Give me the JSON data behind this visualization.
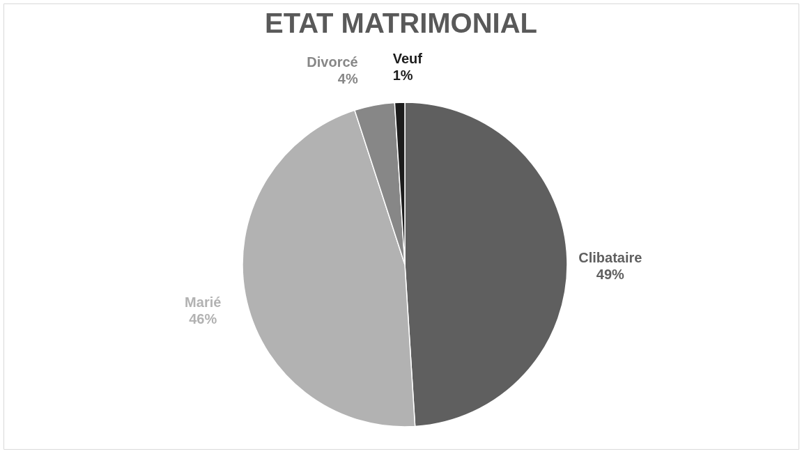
{
  "chart_data": {
    "type": "pie",
    "title": "ETAT MATRIMONIAL",
    "categories": [
      "Clibataire",
      "Marié",
      "Divorcé",
      "Veuf"
    ],
    "values": [
      49,
      46,
      4,
      1
    ],
    "value_labels": [
      "49%",
      "46%",
      "4%",
      "1%"
    ],
    "colors": [
      "#5f5f5f",
      "#b2b2b2",
      "#878787",
      "#1c1c1c"
    ],
    "legend": false
  }
}
